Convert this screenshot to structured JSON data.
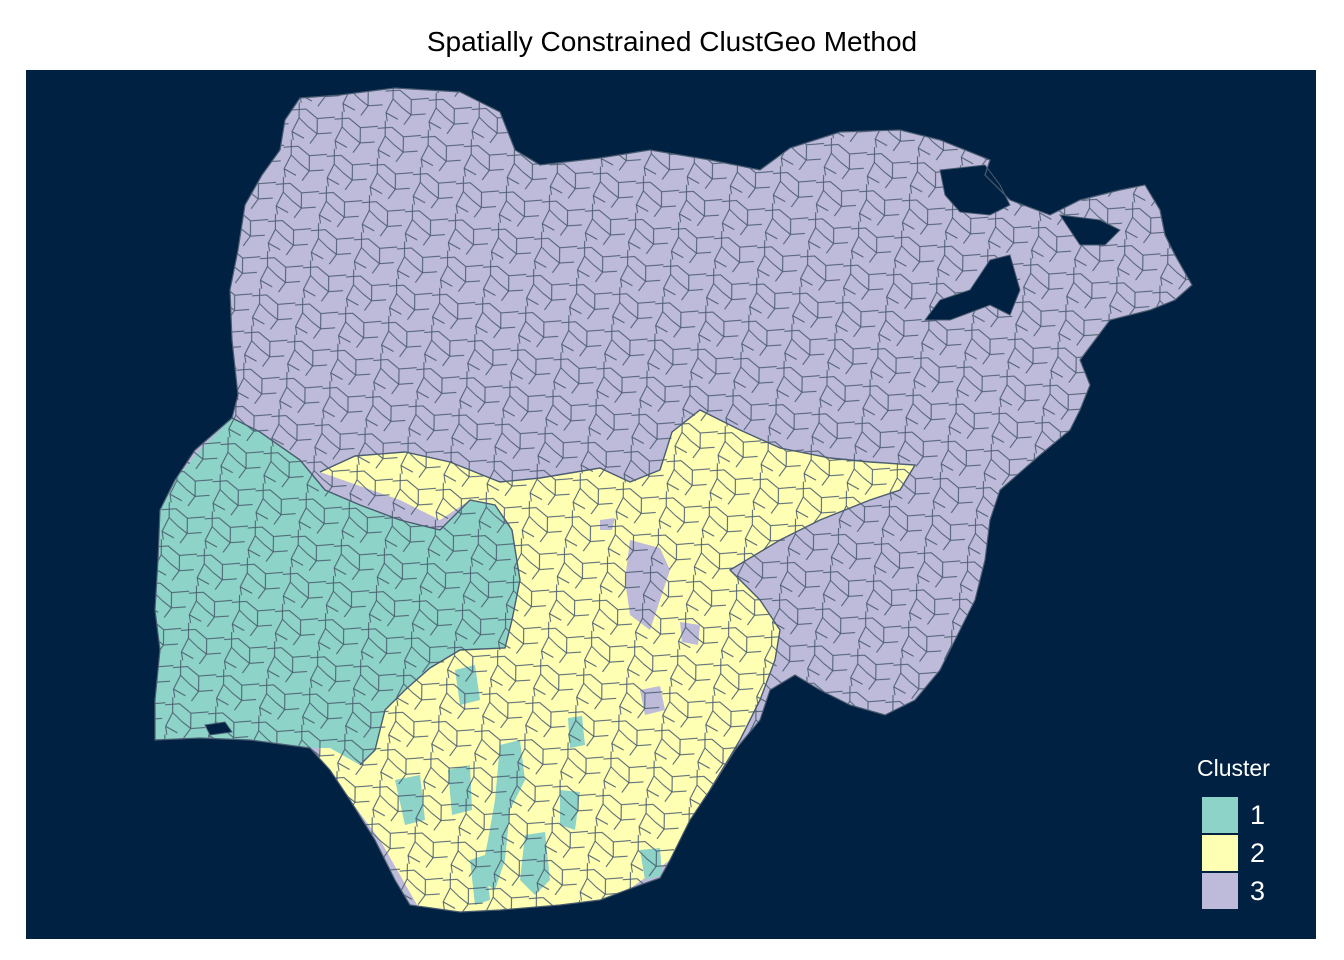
{
  "title": "Spatially Constrained ClustGeo Method",
  "colors": {
    "background": "#002142",
    "border": "#4a5c70",
    "water": "#002142"
  },
  "legend": {
    "title": "Cluster",
    "items": [
      {
        "label": "1",
        "color": "#8dd3c7"
      },
      {
        "label": "2",
        "color": "#ffffb3"
      },
      {
        "label": "3",
        "color": "#bebada"
      }
    ]
  }
}
